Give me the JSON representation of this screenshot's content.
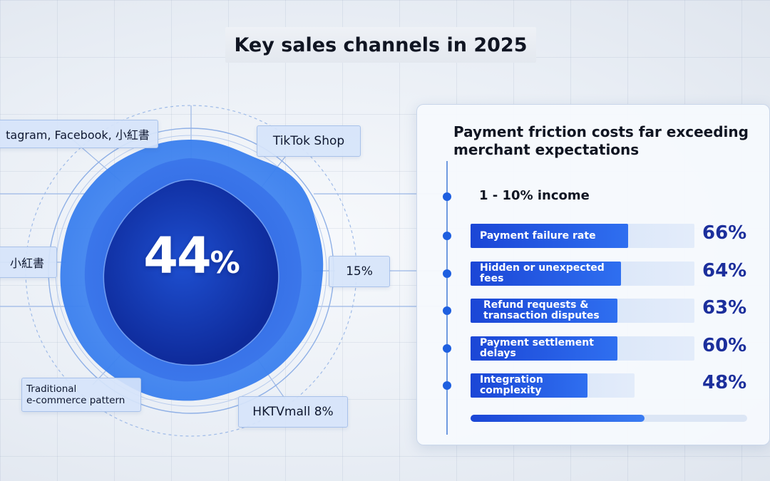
{
  "title": "Key sales channels in 2025",
  "center": {
    "value": "44",
    "unit": "%"
  },
  "channel_labels": [
    {
      "id": "social",
      "text": "tagram, Facebook, 小紅書"
    },
    {
      "id": "tiktok",
      "text": "TikTok Shop"
    },
    {
      "id": "xhs",
      "text": "小紅書"
    },
    {
      "id": "fifteen",
      "text": "15%"
    },
    {
      "id": "traditional",
      "text": "Traditional\ne-commerce pattern"
    },
    {
      "id": "hktv",
      "text": "HKTVmall 8%"
    }
  ],
  "panel": {
    "title": "Payment friction costs far exceeding merchant expectations",
    "income_label": "1 - 10% income"
  },
  "chart_data": {
    "type": "bar",
    "orientation": "horizontal",
    "title": "Payment friction costs far exceeding merchant expectations",
    "categories": [
      "Payment failure rate",
      "Hidden or unexpected fees",
      "Refund requests &\ntransaction disputes",
      "Payment settlement delays",
      "Integration complexity"
    ],
    "values": [
      66,
      64,
      63,
      60,
      48
    ],
    "value_labels": [
      "66%",
      "64%",
      "63%",
      "60%",
      "48%"
    ],
    "unit": "%",
    "xlim": [
      0,
      100
    ],
    "bottom_progress": 0.63
  },
  "colors": {
    "accent": "#1e5fe0",
    "dark_blue": "#1c2f9c",
    "bar_start": "#1b46d6",
    "bar_end": "#2f6ff0"
  }
}
